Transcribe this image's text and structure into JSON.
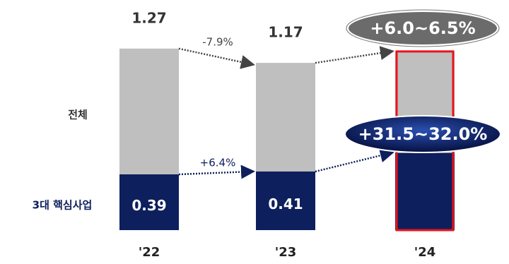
{
  "chart_data": {
    "type": "bar",
    "categories": [
      "'22",
      "'23",
      "'24"
    ],
    "series": [
      {
        "name": "전체",
        "color": "#bfbfbf",
        "values": [
          1.27,
          1.17,
          1.25
        ],
        "value_labels": [
          "1.27",
          "1.17",
          null
        ]
      },
      {
        "name": "3대 핵심사업",
        "color": "#0d1f5c",
        "values": [
          0.39,
          0.41,
          0.54
        ],
        "value_labels": [
          "0.39",
          "0.41",
          null
        ]
      }
    ],
    "ylim": [
      0,
      1.6
    ],
    "annotations": [
      "-7.9%",
      "+6.4%",
      "+6.0~6.5%",
      "+31.5~32.0%"
    ],
    "highlight_color": "#e8141b"
  }
}
